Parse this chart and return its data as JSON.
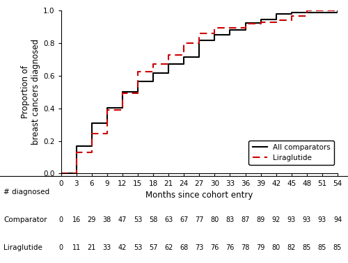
{
  "xlabel": "Months since cohort entry",
  "ylabel": "Proportion of\nbreast cancers diagnosed",
  "xlim": [
    0,
    54
  ],
  "ylim": [
    0,
    1.0
  ],
  "xticks": [
    0,
    3,
    6,
    9,
    12,
    15,
    18,
    21,
    24,
    27,
    30,
    33,
    36,
    39,
    42,
    45,
    48,
    51,
    54
  ],
  "yticks": [
    0.0,
    0.2,
    0.4,
    0.6,
    0.8,
    1.0
  ],
  "table_months": [
    0,
    3,
    6,
    9,
    12,
    15,
    18,
    21,
    24,
    27,
    30,
    33,
    36,
    39,
    42,
    45,
    48,
    51,
    54
  ],
  "comparator_counts": [
    0,
    16,
    29,
    38,
    47,
    53,
    58,
    63,
    67,
    77,
    80,
    83,
    87,
    89,
    92,
    93,
    93,
    93,
    94
  ],
  "comparator_total": 94,
  "liraglutide_counts": [
    0,
    11,
    21,
    33,
    42,
    53,
    57,
    62,
    68,
    73,
    76,
    76,
    78,
    79,
    80,
    82,
    85,
    85,
    85
  ],
  "liraglutide_total": 85,
  "comparator_color": "#000000",
  "liraglutide_color": "#cc0000",
  "table_label_diagnosed": "# diagnosed",
  "table_label_comparator": "Comparator",
  "table_label_liraglutide": "Liraglutide",
  "legend_comparator": "All comparators",
  "legend_liraglutide": "Liraglutide"
}
